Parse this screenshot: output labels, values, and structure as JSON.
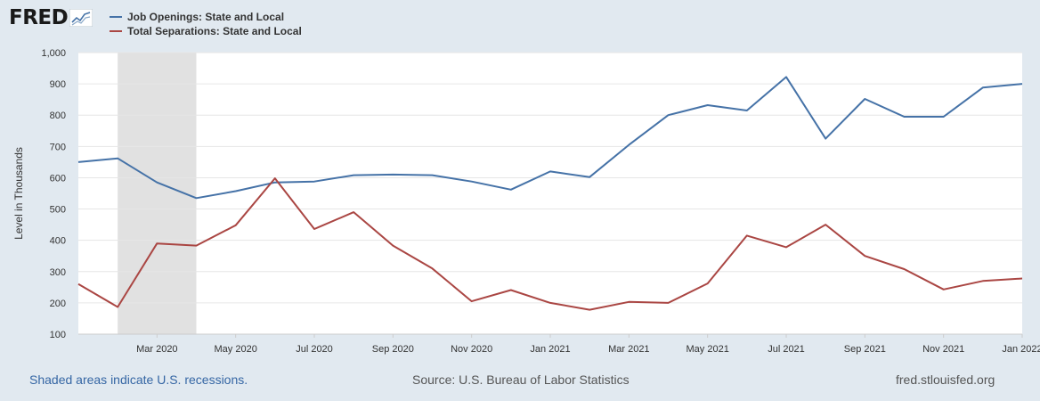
{
  "logo": {
    "text": "FRED"
  },
  "footer": {
    "recession_note": "Shaded areas indicate U.S. recessions.",
    "source": "Source: U.S. Bureau of Labor Statistics",
    "site": "fred.stlouisfed.org"
  },
  "colors": {
    "openings": "#4572a7",
    "separations": "#aa4643",
    "recession": "#e1e1e1",
    "background": "#e1e9f0"
  },
  "chart_data": {
    "type": "line",
    "ylabel": "Level in Thousands",
    "ylim": [
      100,
      1000
    ],
    "yticks": [
      100,
      200,
      300,
      400,
      500,
      600,
      700,
      800,
      900,
      1000
    ],
    "ytick_labels": [
      "100",
      "200",
      "300",
      "400",
      "500",
      "600",
      "700",
      "800",
      "900",
      "1,000"
    ],
    "x": [
      "2020-01",
      "2020-02",
      "2020-03",
      "2020-04",
      "2020-05",
      "2020-06",
      "2020-07",
      "2020-08",
      "2020-09",
      "2020-10",
      "2020-11",
      "2020-12",
      "2021-01",
      "2021-02",
      "2021-03",
      "2021-04",
      "2021-05",
      "2021-06",
      "2021-07",
      "2021-08",
      "2021-09",
      "2021-10",
      "2021-11",
      "2021-12",
      "2022-01"
    ],
    "xtick_labels": [
      {
        "x": "2020-03",
        "label": "Mar 2020"
      },
      {
        "x": "2020-05",
        "label": "May 2020"
      },
      {
        "x": "2020-07",
        "label": "Jul 2020"
      },
      {
        "x": "2020-09",
        "label": "Sep 2020"
      },
      {
        "x": "2020-11",
        "label": "Nov 2020"
      },
      {
        "x": "2021-01",
        "label": "Jan 2021"
      },
      {
        "x": "2021-03",
        "label": "Mar 2021"
      },
      {
        "x": "2021-05",
        "label": "May 2021"
      },
      {
        "x": "2021-07",
        "label": "Jul 2021"
      },
      {
        "x": "2021-09",
        "label": "Sep 2021"
      },
      {
        "x": "2021-11",
        "label": "Nov 2021"
      },
      {
        "x": "2022-01",
        "label": "Jan 2022"
      }
    ],
    "recession": {
      "start": "2020-02",
      "end": "2020-04"
    },
    "series": [
      {
        "name": "Job Openings: State and Local",
        "color": "#4572a7",
        "values": [
          650,
          662,
          585,
          535,
          557,
          585,
          588,
          608,
          610,
          608,
          588,
          562,
          620,
          602,
          705,
          800,
          832,
          815,
          922,
          725,
          852,
          795,
          795,
          888,
          900
        ]
      },
      {
        "name": "Total Separations: State and Local",
        "color": "#aa4643",
        "values": [
          260,
          187,
          390,
          383,
          448,
          598,
          436,
          490,
          383,
          310,
          205,
          241,
          200,
          178,
          203,
          200,
          262,
          415,
          378,
          450,
          350,
          308,
          243,
          270,
          278
        ]
      }
    ]
  }
}
